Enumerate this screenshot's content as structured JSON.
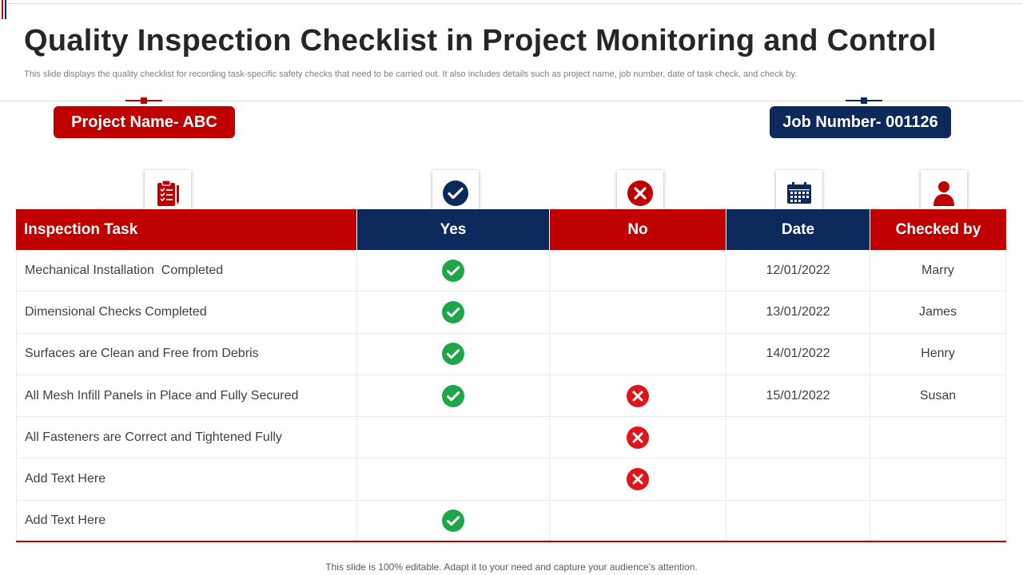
{
  "title": "Quality Inspection Checklist in Project Monitoring and Control",
  "subtitle": "This slide displays the quality checklist for recording task-specific safety checks that need to  be carried out.  It also includes details such as project name, job number, date of task check, and check by.",
  "project_label": "Project Name- ABC",
  "job_label": "Job Number- 001126",
  "columns": [
    "Inspection Task",
    "Yes",
    "No",
    "Date",
    "Checked by"
  ],
  "rows": [
    {
      "task": "Mechanical Installation  Completed",
      "yes": true,
      "no": false,
      "date": "12/01/2022",
      "checked_by": "Marry"
    },
    {
      "task": "Dimensional Checks Completed",
      "yes": true,
      "no": false,
      "date": "13/01/2022",
      "checked_by": "James"
    },
    {
      "task": "Surfaces are Clean and Free from Debris",
      "yes": true,
      "no": false,
      "date": "14/01/2022",
      "checked_by": "Henry"
    },
    {
      "task": "All Mesh Infill Panels in Place and Fully Secured",
      "yes": true,
      "no": true,
      "date": "15/01/2022",
      "checked_by": "Susan"
    },
    {
      "task": "All Fasteners are Correct and Tightened Fully",
      "yes": false,
      "no": true,
      "date": "",
      "checked_by": ""
    },
    {
      "task": "Add Text Here",
      "yes": false,
      "no": true,
      "date": "",
      "checked_by": ""
    },
    {
      "task": "Add Text Here",
      "yes": true,
      "no": false,
      "date": "",
      "checked_by": ""
    }
  ],
  "footer": "This slide is 100% editable. Adapt it to your need and capture your audience’s attention.",
  "colors": {
    "red": "#c00000",
    "navy": "#0b2a5b",
    "check": "#1ea74a"
  },
  "icons": [
    "clipboard-checklist-icon",
    "check-circle-icon",
    "x-circle-icon",
    "calendar-icon",
    "user-icon"
  ]
}
